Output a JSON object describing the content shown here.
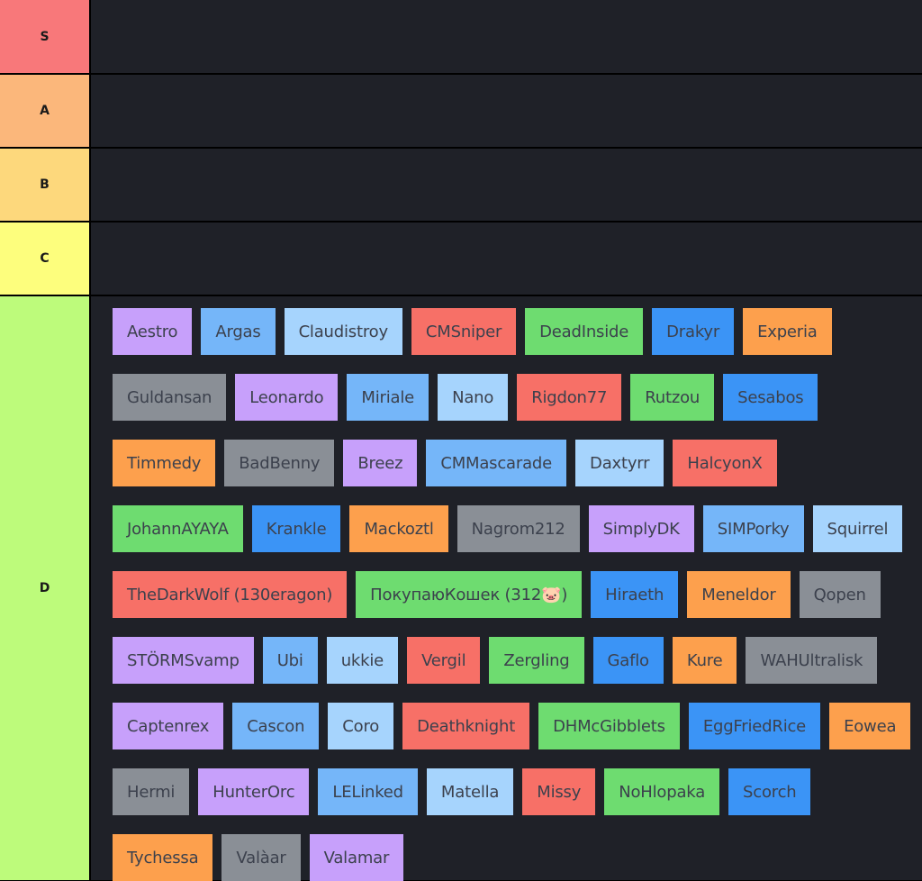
{
  "tiers": [
    {
      "label": "S",
      "color": "#f8787a",
      "items": []
    },
    {
      "label": "A",
      "color": "#fbb77b",
      "items": []
    },
    {
      "label": "B",
      "color": "#fdd87c",
      "items": []
    },
    {
      "label": "C",
      "color": "#fdfe7d",
      "items": []
    },
    {
      "label": "D",
      "color": "#bdfb7b",
      "items": [
        {
          "name": "Aestro",
          "color": "purple"
        },
        {
          "name": "Argas",
          "color": "blue"
        },
        {
          "name": "Claudistroy",
          "color": "lightblue"
        },
        {
          "name": "CMSniper",
          "color": "red"
        },
        {
          "name": "DeadInside",
          "color": "green"
        },
        {
          "name": "Drakyr",
          "color": "darkblue"
        },
        {
          "name": "Experia",
          "color": "orange"
        },
        {
          "name": "Guldansan",
          "color": "gray"
        },
        {
          "name": "Leonardo",
          "color": "purple"
        },
        {
          "name": "Miriale",
          "color": "blue"
        },
        {
          "name": "Nano",
          "color": "lightblue"
        },
        {
          "name": "Rigdon77",
          "color": "red"
        },
        {
          "name": "Rutzou",
          "color": "green"
        },
        {
          "name": "Sesabos",
          "color": "darkblue"
        },
        {
          "name": "Timmedy",
          "color": "orange"
        },
        {
          "name": "BadBenny",
          "color": "gray"
        },
        {
          "name": "Breez",
          "color": "purple"
        },
        {
          "name": "CMMascarade",
          "color": "blue"
        },
        {
          "name": "Daxtyrr",
          "color": "lightblue"
        },
        {
          "name": "HalcyonX",
          "color": "red"
        },
        {
          "name": "JohannAYAYA",
          "color": "green"
        },
        {
          "name": "Krankle",
          "color": "darkblue"
        },
        {
          "name": "Mackoztl",
          "color": "orange"
        },
        {
          "name": "Nagrom212",
          "color": "gray"
        },
        {
          "name": "SimplyDK",
          "color": "purple"
        },
        {
          "name": "SIMPorky",
          "color": "blue"
        },
        {
          "name": "Squirrel",
          "color": "lightblue"
        },
        {
          "name": "TheDarkWolf (130eragon)",
          "color": "red"
        },
        {
          "name": "ПокупаюКошек (312🐷)",
          "color": "green"
        },
        {
          "name": "Hiraeth",
          "color": "darkblue"
        },
        {
          "name": "Meneldor",
          "color": "orange"
        },
        {
          "name": "Qopen",
          "color": "gray"
        },
        {
          "name": "STÖRMSvamp",
          "color": "purple"
        },
        {
          "name": "Ubi",
          "color": "blue"
        },
        {
          "name": "ukkie",
          "color": "lightblue"
        },
        {
          "name": "Vergil",
          "color": "red"
        },
        {
          "name": "Zergling",
          "color": "green"
        },
        {
          "name": "Gaflo",
          "color": "darkblue"
        },
        {
          "name": "Kure",
          "color": "orange"
        },
        {
          "name": "WAHUltralisk",
          "color": "gray"
        },
        {
          "name": "Captenrex",
          "color": "purple"
        },
        {
          "name": "Cascon",
          "color": "blue"
        },
        {
          "name": "Coro",
          "color": "lightblue"
        },
        {
          "name": "Deathknight",
          "color": "red"
        },
        {
          "name": "DHMcGibblets",
          "color": "green"
        },
        {
          "name": "EggFriedRice",
          "color": "darkblue"
        },
        {
          "name": "Eowea",
          "color": "orange"
        },
        {
          "name": "Hermi",
          "color": "gray"
        },
        {
          "name": "HunterOrc",
          "color": "purple"
        },
        {
          "name": "LELinked",
          "color": "blue"
        },
        {
          "name": "Matella",
          "color": "lightblue"
        },
        {
          "name": "Missy",
          "color": "red"
        },
        {
          "name": "NoHlopaka",
          "color": "green"
        },
        {
          "name": "Scorch",
          "color": "darkblue"
        },
        {
          "name": "Tychessa",
          "color": "orange"
        },
        {
          "name": "Valàar",
          "color": "gray"
        },
        {
          "name": "Valamar",
          "color": "purple"
        }
      ]
    }
  ]
}
